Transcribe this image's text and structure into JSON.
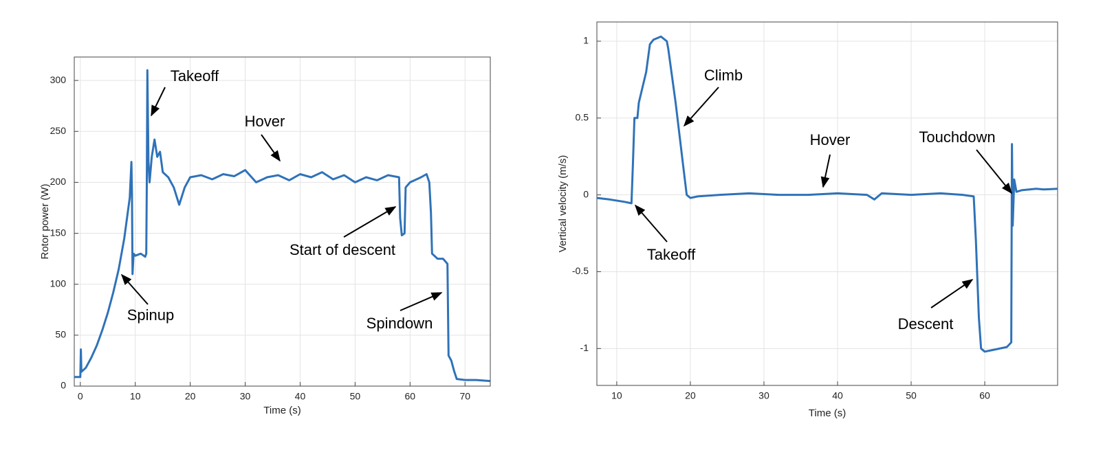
{
  "chart_data": [
    {
      "type": "line",
      "xlabel": "Time (s)",
      "ylabel": "Rotor power (W)",
      "xlim": [
        -1.1,
        74.6
      ],
      "xticks": [
        0,
        10,
        20,
        30,
        40,
        50,
        60,
        70
      ],
      "ylim": [
        0,
        323
      ],
      "yticks": [
        0,
        50,
        100,
        150,
        200,
        250,
        300
      ],
      "grid": true,
      "annotations": [
        "Takeoff",
        "Hover",
        "Start of descent",
        "Spinup",
        "Spindown"
      ],
      "x": [
        -1.1,
        -0.5,
        0,
        0.1,
        0.2,
        1,
        2,
        3,
        4,
        5,
        6,
        7,
        8,
        9,
        9.3,
        9.4,
        9.5,
        9.7,
        10,
        11,
        11.8,
        12,
        12.1,
        12.2,
        12.4,
        12.6,
        13,
        13.5,
        14,
        14.5,
        15,
        16,
        17,
        18,
        19,
        20,
        22,
        24,
        26,
        28,
        30,
        32,
        34,
        36,
        38,
        40,
        42,
        44,
        46,
        48,
        50,
        52,
        54,
        56,
        58,
        58.2,
        58.5,
        59,
        59.2,
        60,
        62,
        63,
        63.5,
        63.8,
        64,
        65,
        66,
        66.8,
        67,
        67.5,
        68,
        68.5,
        70,
        72,
        74.6
      ],
      "series": [
        {
          "color": "#2f72b8",
          "values": [
            9,
            9,
            9,
            36,
            14,
            18,
            28,
            40,
            55,
            72,
            92,
            115,
            145,
            185,
            220,
            190,
            110,
            130,
            128,
            130,
            127,
            130,
            200,
            310,
            220,
            200,
            225,
            242,
            225,
            230,
            210,
            205,
            195,
            178,
            195,
            205,
            207,
            203,
            208,
            206,
            212,
            200,
            205,
            207,
            202,
            208,
            205,
            210,
            203,
            207,
            200,
            205,
            202,
            207,
            205,
            165,
            148,
            150,
            195,
            200,
            205,
            208,
            200,
            170,
            130,
            125,
            125,
            120,
            30,
            25,
            15,
            7,
            6,
            6,
            5
          ]
        }
      ]
    },
    {
      "type": "line",
      "xlabel": "Time (s)",
      "ylabel": "Vertical velocity (m/s)",
      "xlim": [
        7.3,
        69.9
      ],
      "xticks": [
        10,
        20,
        30,
        40,
        50,
        60
      ],
      "ylim": [
        -1.24,
        1.125
      ],
      "yticks": [
        -1,
        -0.5,
        0,
        0.5,
        1
      ],
      "grid": true,
      "annotations": [
        "Climb",
        "Takeoff",
        "Hover",
        "Touchdown",
        "Descent"
      ],
      "x": [
        7.3,
        9,
        11,
        12,
        12.2,
        12.4,
        12.8,
        13,
        14,
        14.5,
        15,
        16,
        16.8,
        17,
        18,
        19,
        19.5,
        20,
        21,
        24,
        28,
        32,
        36,
        40,
        44,
        45,
        46,
        50,
        54,
        57,
        58.5,
        58.8,
        59.2,
        59.5,
        60,
        61,
        63,
        63.6,
        63.7,
        63.8,
        64,
        64.3,
        65,
        67,
        68,
        69.9
      ],
      "series": [
        {
          "color": "#2f72b8",
          "values": [
            -0.02,
            -0.03,
            -0.045,
            -0.055,
            0.2,
            0.5,
            0.5,
            0.6,
            0.8,
            0.98,
            1.01,
            1.03,
            1.0,
            0.95,
            0.6,
            0.2,
            0,
            -0.02,
            -0.01,
            0,
            0.01,
            0,
            0,
            0.01,
            0,
            -0.03,
            0.01,
            0,
            0.01,
            0,
            -0.01,
            -0.3,
            -0.8,
            -1.0,
            -1.02,
            -1.01,
            -0.99,
            -0.96,
            0.33,
            -0.2,
            0.1,
            0.02,
            0.03,
            0.04,
            0.035,
            0.04
          ]
        }
      ]
    }
  ]
}
